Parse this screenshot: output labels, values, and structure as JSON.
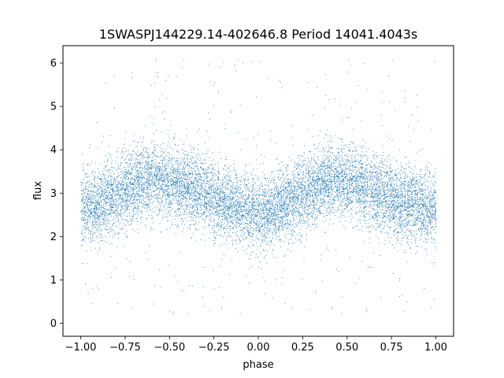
{
  "chart_data": {
    "type": "scatter",
    "title": "1SWASPJ144229.14-402646.8 Period 14041.4043s",
    "xlabel": "phase",
    "ylabel": "flux",
    "xlim": [
      -1.1,
      1.1
    ],
    "ylim": [
      -0.3,
      6.4
    ],
    "xticks": [
      -1.0,
      -0.75,
      -0.5,
      -0.25,
      0.0,
      0.25,
      0.5,
      0.75,
      1.0
    ],
    "xtick_labels": [
      "−1.00",
      "−0.75",
      "−0.50",
      "−0.25",
      "0.00",
      "0.25",
      "0.50",
      "0.75",
      "1.00"
    ],
    "yticks": [
      0,
      1,
      2,
      3,
      4,
      5,
      6
    ],
    "ytick_labels": [
      "0",
      "1",
      "2",
      "3",
      "4",
      "5",
      "6"
    ],
    "grid": false,
    "marker_color": "#1f77b4",
    "x_range": [
      -1.0,
      1.0
    ],
    "phase_trend": {
      "x": [
        -1.0,
        -0.9,
        -0.8,
        -0.7,
        -0.6,
        -0.5,
        -0.4,
        -0.3,
        -0.2,
        -0.1,
        0.0,
        0.1,
        0.2,
        0.3,
        0.4,
        0.5,
        0.6,
        0.7,
        0.8,
        0.9,
        1.0
      ],
      "y": [
        2.6,
        2.75,
        2.95,
        3.2,
        3.3,
        3.25,
        3.15,
        3.0,
        2.8,
        2.65,
        2.55,
        2.65,
        2.85,
        3.1,
        3.3,
        3.3,
        3.15,
        2.95,
        2.8,
        2.7,
        2.6
      ]
    }
  }
}
